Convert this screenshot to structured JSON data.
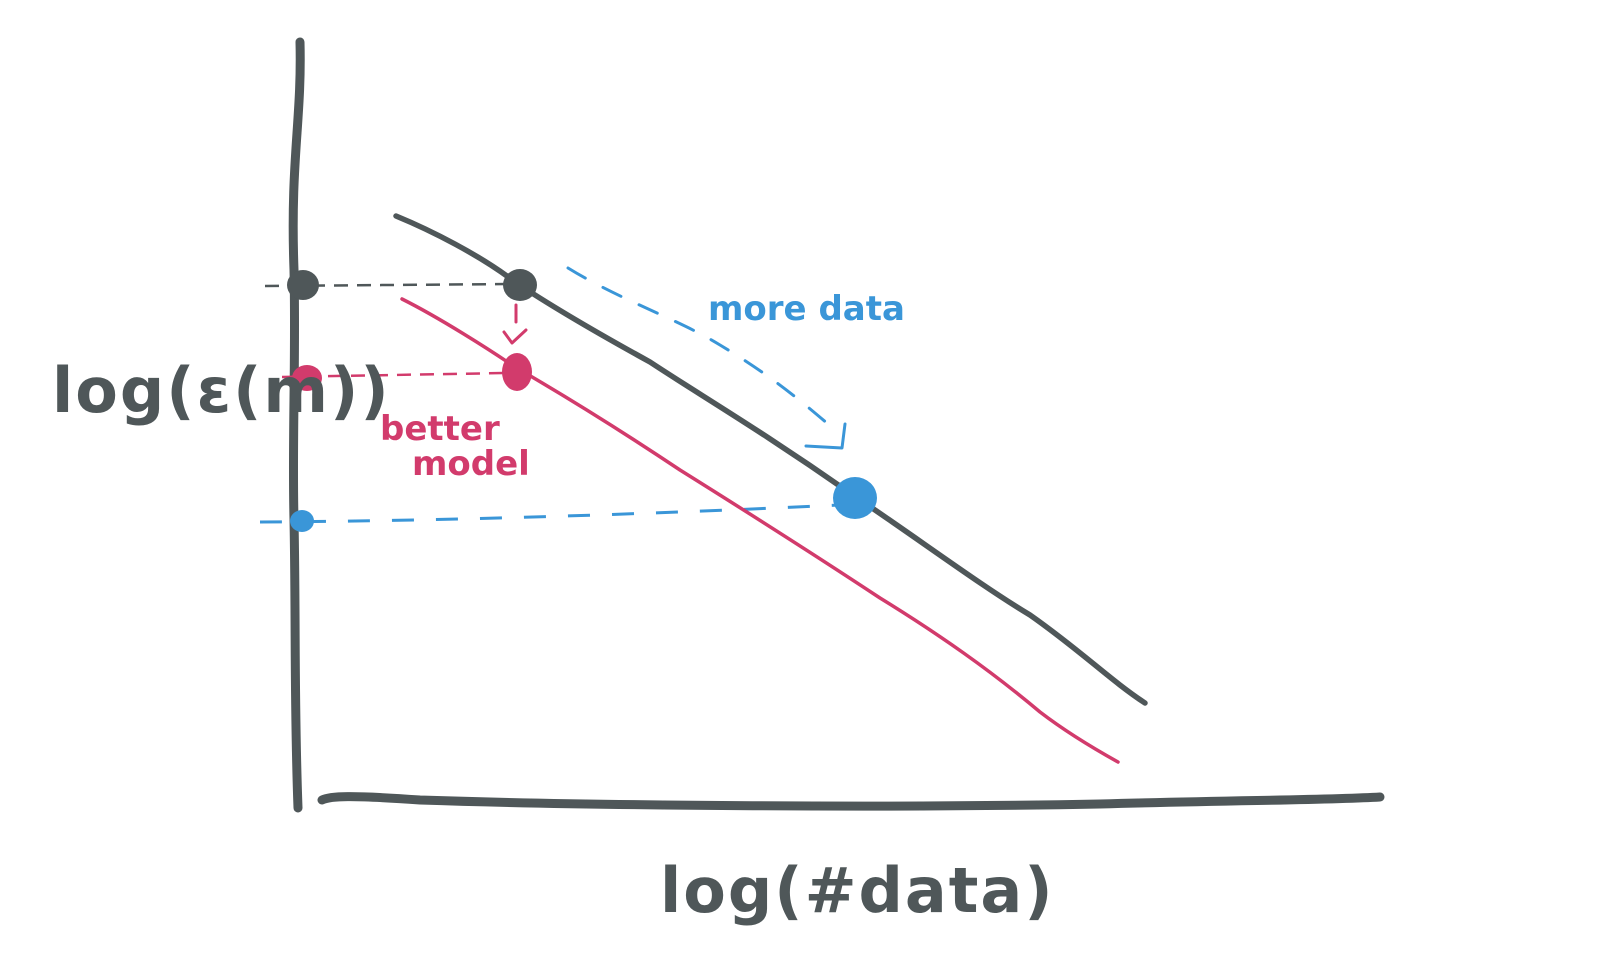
{
  "axes": {
    "x_label": "log(#data)",
    "y_label": "log(ε(m))"
  },
  "annotations": {
    "more_data": "more data",
    "better_model_line1": "better",
    "better_model_line2": "model"
  },
  "colors": {
    "ink": "#4f5759",
    "pink": "#d23b6c",
    "blue": "#3a96d8",
    "background": "#ffffff"
  },
  "lines": [
    {
      "name": "baseline model curve",
      "color": "ink"
    },
    {
      "name": "better model curve",
      "color": "pink"
    }
  ],
  "points": [
    {
      "name": "baseline point",
      "color": "ink"
    },
    {
      "name": "better model point",
      "color": "pink"
    },
    {
      "name": "more data point",
      "color": "blue"
    }
  ],
  "arrows": [
    {
      "name": "better model arrow",
      "color": "pink"
    },
    {
      "name": "more data arrow",
      "color": "blue"
    }
  ]
}
